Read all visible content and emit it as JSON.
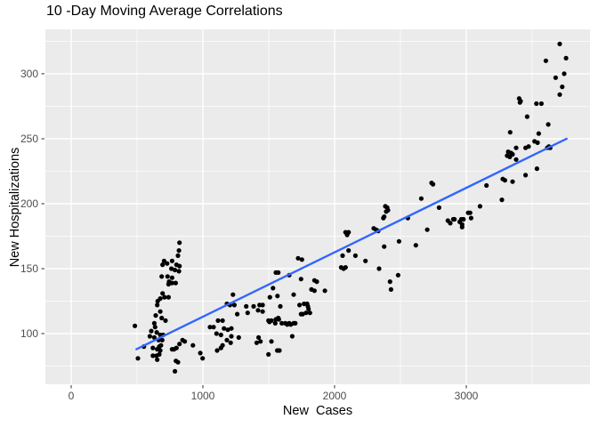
{
  "colors": {
    "background": "#FFFFFF",
    "panel_bg": "#EBEBEB",
    "grid": "#FFFFFF",
    "point": "#000000",
    "trend": "#3366FF",
    "tick_text": "#4D4D4D",
    "tick_mark": "#333333",
    "title_text": "#000000"
  },
  "chart_data": {
    "type": "scatter",
    "title": "10 -Day Moving Average Correlations",
    "xlabel": "New  Cases",
    "ylabel": "New Hospitalizations",
    "legend": "none",
    "grid": "white major and minor gridlines on gray panel",
    "x_ticks": [
      0,
      1000,
      2000,
      3000
    ],
    "y_ticks": [
      100,
      150,
      200,
      250,
      300
    ],
    "x_minor": [
      500,
      1500,
      2500,
      3500
    ],
    "y_minor": [
      75,
      125,
      175,
      225,
      275,
      325
    ],
    "xlim": [
      -196,
      3939
    ],
    "ylim": [
      61,
      334.2
    ],
    "series": [
      {
        "name": "observations",
        "type": "scatter",
        "color": "#000000",
        "points": [
          [
            484,
            106
          ],
          [
            507,
            81
          ],
          [
            552,
            90
          ],
          [
            597,
            98
          ],
          [
            608,
            102
          ],
          [
            620,
            89
          ],
          [
            620,
            83
          ],
          [
            631,
            108
          ],
          [
            631,
            97
          ],
          [
            637,
            105
          ],
          [
            642,
            114
          ],
          [
            647,
            83
          ],
          [
            649,
            101
          ],
          [
            653,
            122
          ],
          [
            653,
            88
          ],
          [
            653,
            80
          ],
          [
            657,
            125
          ],
          [
            664,
            95
          ],
          [
            669,
            90
          ],
          [
            669,
            84
          ],
          [
            676,
            127
          ],
          [
            676,
            117
          ],
          [
            676,
            99
          ],
          [
            676,
            87
          ],
          [
            682,
            91
          ],
          [
            687,
            144
          ],
          [
            687,
            112
          ],
          [
            691,
            95
          ],
          [
            694,
            153
          ],
          [
            694,
            131
          ],
          [
            698,
            99
          ],
          [
            705,
            156
          ],
          [
            709,
            128
          ],
          [
            716,
            110
          ],
          [
            728,
            154
          ],
          [
            732,
            144
          ],
          [
            739,
            138
          ],
          [
            739,
            128
          ],
          [
            743,
            140
          ],
          [
            761,
            150
          ],
          [
            766,
            156
          ],
          [
            766,
            143
          ],
          [
            766,
            139
          ],
          [
            766,
            88
          ],
          [
            781,
            88
          ],
          [
            788,
            149
          ],
          [
            788,
            71
          ],
          [
            793,
            139
          ],
          [
            795,
            79
          ],
          [
            799,
            153
          ],
          [
            799,
            89
          ],
          [
            811,
            160
          ],
          [
            811,
            78
          ],
          [
            818,
            164
          ],
          [
            818,
            148
          ],
          [
            822,
            170
          ],
          [
            822,
            152
          ],
          [
            822,
            92
          ],
          [
            845,
            95
          ],
          [
            862,
            94
          ],
          [
            924,
            91
          ],
          [
            980,
            85
          ],
          [
            998,
            81
          ],
          [
            1054,
            105
          ],
          [
            1081,
            105
          ],
          [
            1103,
            100
          ],
          [
            1108,
            87
          ],
          [
            1115,
            110
          ],
          [
            1137,
            99
          ],
          [
            1137,
            89
          ],
          [
            1149,
            110
          ],
          [
            1149,
            91
          ],
          [
            1160,
            104
          ],
          [
            1182,
            123
          ],
          [
            1182,
            95
          ],
          [
            1189,
            103
          ],
          [
            1205,
            122
          ],
          [
            1211,
            93
          ],
          [
            1216,
            104
          ],
          [
            1216,
            98
          ],
          [
            1228,
            130
          ],
          [
            1239,
            122
          ],
          [
            1261,
            115
          ],
          [
            1272,
            97
          ],
          [
            1329,
            121
          ],
          [
            1340,
            116
          ],
          [
            1385,
            121
          ],
          [
            1408,
            93
          ],
          [
            1419,
            118
          ],
          [
            1423,
            97
          ],
          [
            1430,
            122
          ],
          [
            1437,
            94
          ],
          [
            1453,
            122
          ],
          [
            1453,
            117
          ],
          [
            1498,
            110
          ],
          [
            1498,
            84
          ],
          [
            1505,
            109
          ],
          [
            1509,
            128
          ],
          [
            1520,
            110
          ],
          [
            1520,
            94
          ],
          [
            1532,
            135
          ],
          [
            1549,
            108
          ],
          [
            1554,
            147
          ],
          [
            1554,
            111
          ],
          [
            1565,
            87
          ],
          [
            1566,
            129
          ],
          [
            1572,
            147
          ],
          [
            1572,
            112
          ],
          [
            1576,
            111
          ],
          [
            1581,
            87
          ],
          [
            1588,
            121
          ],
          [
            1599,
            108
          ],
          [
            1626,
            108
          ],
          [
            1640,
            107
          ],
          [
            1655,
            145
          ],
          [
            1655,
            108
          ],
          [
            1667,
            107
          ],
          [
            1678,
            98
          ],
          [
            1689,
            130
          ],
          [
            1689,
            108
          ],
          [
            1701,
            108
          ],
          [
            1723,
            158
          ],
          [
            1734,
            122
          ],
          [
            1745,
            142
          ],
          [
            1745,
            115
          ],
          [
            1752,
            157
          ],
          [
            1757,
            115
          ],
          [
            1768,
            123
          ],
          [
            1783,
            116
          ],
          [
            1791,
            123
          ],
          [
            1797,
            121
          ],
          [
            1802,
            119
          ],
          [
            1813,
            116
          ],
          [
            1824,
            134
          ],
          [
            1847,
            141
          ],
          [
            1847,
            133
          ],
          [
            1865,
            140
          ],
          [
            1926,
            133
          ],
          [
            2050,
            151
          ],
          [
            2061,
            160
          ],
          [
            2068,
            150
          ],
          [
            2083,
            178
          ],
          [
            2083,
            151
          ],
          [
            2095,
            176
          ],
          [
            2106,
            178
          ],
          [
            2106,
            164
          ],
          [
            2158,
            160
          ],
          [
            2234,
            156
          ],
          [
            2297,
            181
          ],
          [
            2315,
            180
          ],
          [
            2331,
            179
          ],
          [
            2338,
            150
          ],
          [
            2370,
            189
          ],
          [
            2376,
            190
          ],
          [
            2376,
            167
          ],
          [
            2385,
            198
          ],
          [
            2392,
            194
          ],
          [
            2399,
            197
          ],
          [
            2405,
            195
          ],
          [
            2421,
            140
          ],
          [
            2428,
            134
          ],
          [
            2482,
            145
          ],
          [
            2489,
            171
          ],
          [
            2556,
            189
          ],
          [
            2617,
            168
          ],
          [
            2658,
            204
          ],
          [
            2703,
            180
          ],
          [
            2736,
            216
          ],
          [
            2747,
            215
          ],
          [
            2793,
            197
          ],
          [
            2860,
            187
          ],
          [
            2878,
            185
          ],
          [
            2901,
            188
          ],
          [
            2910,
            188
          ],
          [
            2950,
            186
          ],
          [
            2962,
            188
          ],
          [
            2968,
            184
          ],
          [
            2968,
            182
          ],
          [
            2978,
            188
          ],
          [
            3014,
            193
          ],
          [
            3029,
            193
          ],
          [
            3036,
            189
          ],
          [
            3104,
            198
          ],
          [
            3153,
            214
          ],
          [
            3270,
            203
          ],
          [
            3277,
            219
          ],
          [
            3293,
            218
          ],
          [
            3310,
            237
          ],
          [
            3318,
            240
          ],
          [
            3330,
            236
          ],
          [
            3340,
            239
          ],
          [
            3351,
            238
          ],
          [
            3351,
            217
          ],
          [
            3333,
            255
          ],
          [
            3378,
            243
          ],
          [
            3378,
            234
          ],
          [
            3401,
            281
          ],
          [
            3407,
            278
          ],
          [
            3412,
            279
          ],
          [
            3450,
            243
          ],
          [
            3450,
            222
          ],
          [
            3462,
            267
          ],
          [
            3473,
            244
          ],
          [
            3518,
            248
          ],
          [
            3532,
            277
          ],
          [
            3536,
            227
          ],
          [
            3541,
            247
          ],
          [
            3550,
            254
          ],
          [
            3570,
            277
          ],
          [
            3604,
            310
          ],
          [
            3615,
            243
          ],
          [
            3622,
            261
          ],
          [
            3627,
            244
          ],
          [
            3637,
            243
          ],
          [
            3678,
            297
          ],
          [
            3709,
            323
          ],
          [
            3709,
            284
          ],
          [
            3728,
            290
          ],
          [
            3743,
            300
          ],
          [
            3757,
            312
          ]
        ]
      },
      {
        "name": "linear-fit",
        "type": "line",
        "color": "#3366FF",
        "points": [
          [
            495,
            88
          ],
          [
            3761,
            250
          ]
        ]
      }
    ]
  }
}
